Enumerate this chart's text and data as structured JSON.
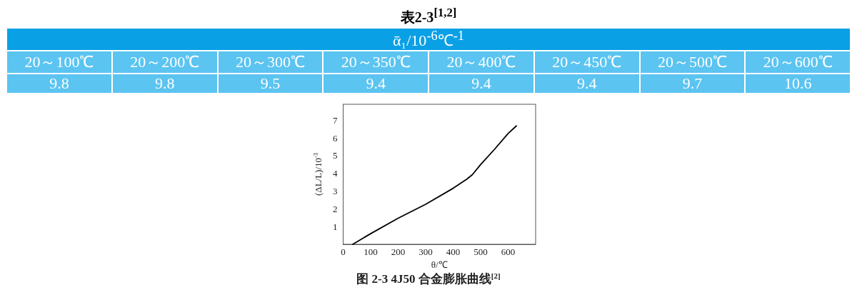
{
  "chart_data": [
    {
      "type": "other",
      "title": "表2-3$^{[1,2]}$",
      "subtitle": "ᾱ₁/10$^{-6}$℃$^{-1}$",
      "categories": [
        "20～100℃",
        "20～200℃",
        "20～300℃",
        "20～350℃",
        "20～400℃",
        "20～450℃",
        "20～500℃",
        "20～600℃"
      ],
      "values": [
        9.8,
        9.8,
        9.5,
        9.4,
        9.4,
        9.4,
        9.7,
        10.6
      ],
      "data_labels": true,
      "color": "#5bc4f1"
    },
    {
      "type": "line",
      "title": "图 2-3 4J50 合金膨胀曲线$^{[2]}$",
      "xlabel": "θ/℃",
      "ylabel": "(ΔL/L)/10$^{-3}$",
      "xlim": [
        0,
        700
      ],
      "ylim": [
        0,
        7.9
      ],
      "xticks": [
        0,
        100,
        200,
        300,
        400,
        500,
        600
      ],
      "yticks": [
        1,
        2,
        3,
        4,
        5,
        6,
        7
      ],
      "grid": false,
      "marker": "none",
      "line_style": "solid",
      "series": [
        {
          "color": "#000000",
          "x": [
            35,
            100,
            200,
            300,
            400,
            450,
            470,
            500,
            550,
            600,
            630
          ],
          "values": [
            0,
            0.6,
            1.47,
            2.26,
            3.16,
            3.68,
            3.93,
            4.5,
            5.35,
            6.25,
            6.68
          ]
        }
      ]
    }
  ]
}
